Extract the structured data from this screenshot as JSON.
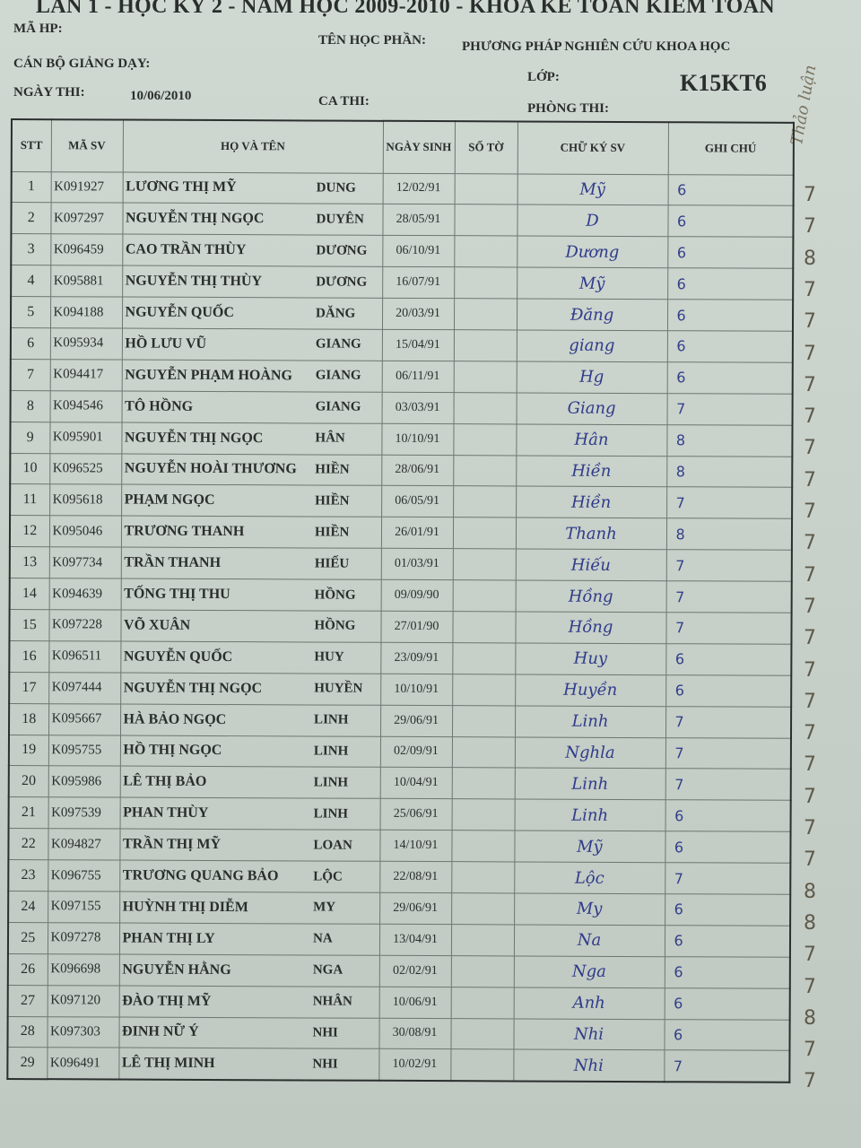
{
  "header": {
    "title": "LẦN 1 - HỌC KỲ 2 - NĂM HỌC 2009-2010 - KHOA KẾ TOÁN KIỂM TOÁN",
    "ma_hp_label": "MÃ HP:",
    "ten_hoc_phan_label": "TÊN HỌC PHẦN:",
    "ten_hoc_phan": "PHƯƠNG PHÁP NGHIÊN CỨU KHOA HỌC",
    "can_bo_label": "CÁN BỘ GIẢNG DẠY:",
    "lop_label": "LỚP:",
    "lop": "K15KT6",
    "ngay_thi_label": "NGÀY THI:",
    "ngay_thi": "10/06/2010",
    "ca_thi_label": "CA THI:",
    "phong_thi_label": "PHÒNG THI:",
    "margin_note": "Thảo luận"
  },
  "columns": [
    "STT",
    "MÃ SV",
    "HỌ VÀ TÊN",
    "NGÀY SINH",
    "SỐ TỜ",
    "CHỮ KÝ SV",
    "GHI CHÚ"
  ],
  "rows": [
    {
      "stt": "1",
      "ma": "K091927",
      "ho": "LƯƠNG THỊ MỸ",
      "ten": "DUNG",
      "ns": "12/02/91",
      "ky": "Mỹ",
      "gc": "6",
      "margin": "7"
    },
    {
      "stt": "2",
      "ma": "K097297",
      "ho": "NGUYỄN THỊ NGỌC",
      "ten": "DUYÊN",
      "ns": "28/05/91",
      "ky": "D",
      "gc": "6",
      "margin": "7"
    },
    {
      "stt": "3",
      "ma": "K096459",
      "ho": "CAO TRẦN THÙY",
      "ten": "DƯƠNG",
      "ns": "06/10/91",
      "ky": "Dương",
      "gc": "6",
      "margin": "8"
    },
    {
      "stt": "4",
      "ma": "K095881",
      "ho": "NGUYỄN THỊ THÙY",
      "ten": "DƯƠNG",
      "ns": "16/07/91",
      "ky": "Mỹ",
      "gc": "6",
      "margin": "7"
    },
    {
      "stt": "5",
      "ma": "K094188",
      "ho": "NGUYỄN QUỐC",
      "ten": "DĂNG",
      "ns": "20/03/91",
      "ky": "Đăng",
      "gc": "6",
      "margin": "7"
    },
    {
      "stt": "6",
      "ma": "K095934",
      "ho": "HỒ LƯU VŨ",
      "ten": "GIANG",
      "ns": "15/04/91",
      "ky": "giang",
      "gc": "6",
      "margin": "7"
    },
    {
      "stt": "7",
      "ma": "K094417",
      "ho": "NGUYỄN PHẠM HOÀNG",
      "ten": "GIANG",
      "ns": "06/11/91",
      "ky": "Hg",
      "gc": "6",
      "margin": "7"
    },
    {
      "stt": "8",
      "ma": "K094546",
      "ho": "TÔ HỒNG",
      "ten": "GIANG",
      "ns": "03/03/91",
      "ky": "Giang",
      "gc": "7",
      "margin": "7"
    },
    {
      "stt": "9",
      "ma": "K095901",
      "ho": "NGUYỄN THỊ NGỌC",
      "ten": "HÂN",
      "ns": "10/10/91",
      "ky": "Hân",
      "gc": "8",
      "margin": "7"
    },
    {
      "stt": "10",
      "ma": "K096525",
      "ho": "NGUYỄN HOÀI THƯƠNG",
      "ten": "HIỀN",
      "ns": "28/06/91",
      "ky": "Hiền",
      "gc": "8",
      "margin": "7"
    },
    {
      "stt": "11",
      "ma": "K095618",
      "ho": "PHẠM NGỌC",
      "ten": "HIỀN",
      "ns": "06/05/91",
      "ky": "Hiền",
      "gc": "7",
      "margin": "7"
    },
    {
      "stt": "12",
      "ma": "K095046",
      "ho": "TRƯƠNG THANH",
      "ten": "HIỀN",
      "ns": "26/01/91",
      "ky": "Thanh",
      "gc": "8",
      "margin": "7"
    },
    {
      "stt": "13",
      "ma": "K097734",
      "ho": "TRẦN THANH",
      "ten": "HIẾU",
      "ns": "01/03/91",
      "ky": "Hiếu",
      "gc": "7",
      "margin": "7"
    },
    {
      "stt": "14",
      "ma": "K094639",
      "ho": "TỐNG THỊ THU",
      "ten": "HỒNG",
      "ns": "09/09/90",
      "ky": "Hồng",
      "gc": "7",
      "margin": "7"
    },
    {
      "stt": "15",
      "ma": "K097228",
      "ho": "VÕ XUÂN",
      "ten": "HỒNG",
      "ns": "27/01/90",
      "ky": "Hồng",
      "gc": "7",
      "margin": "7"
    },
    {
      "stt": "16",
      "ma": "K096511",
      "ho": "NGUYỄN QUỐC",
      "ten": "HUY",
      "ns": "23/09/91",
      "ky": "Huy",
      "gc": "6",
      "margin": "7"
    },
    {
      "stt": "17",
      "ma": "K097444",
      "ho": "NGUYỄN THỊ NGỌC",
      "ten": "HUYỀN",
      "ns": "10/10/91",
      "ky": "Huyền",
      "gc": "6",
      "margin": "7"
    },
    {
      "stt": "18",
      "ma": "K095667",
      "ho": "HÀ BẢO NGỌC",
      "ten": "LINH",
      "ns": "29/06/91",
      "ky": "Linh",
      "gc": "7",
      "margin": "7"
    },
    {
      "stt": "19",
      "ma": "K095755",
      "ho": "HỒ THỊ NGỌC",
      "ten": "LINH",
      "ns": "02/09/91",
      "ky": "Nghla",
      "gc": "7",
      "margin": "7"
    },
    {
      "stt": "20",
      "ma": "K095986",
      "ho": "LÊ THỊ BẢO",
      "ten": "LINH",
      "ns": "10/04/91",
      "ky": "Linh",
      "gc": "7",
      "margin": "7"
    },
    {
      "stt": "21",
      "ma": "K097539",
      "ho": "PHAN THÙY",
      "ten": "LINH",
      "ns": "25/06/91",
      "ky": "Linh",
      "gc": "6",
      "margin": "7"
    },
    {
      "stt": "22",
      "ma": "K094827",
      "ho": "TRẦN THỊ MỸ",
      "ten": "LOAN",
      "ns": "14/10/91",
      "ky": "Mỹ",
      "gc": "6",
      "margin": "7"
    },
    {
      "stt": "23",
      "ma": "K096755",
      "ho": "TRƯƠNG QUANG BẢO",
      "ten": "LỘC",
      "ns": "22/08/91",
      "ky": "Lộc",
      "gc": "7",
      "margin": "8"
    },
    {
      "stt": "24",
      "ma": "K097155",
      "ho": "HUỲNH THỊ DIỄM",
      "ten": "MY",
      "ns": "29/06/91",
      "ky": "My",
      "gc": "6",
      "margin": "8"
    },
    {
      "stt": "25",
      "ma": "K097278",
      "ho": "PHAN THỊ LY",
      "ten": "NA",
      "ns": "13/04/91",
      "ky": "Na",
      "gc": "6",
      "margin": "7"
    },
    {
      "stt": "26",
      "ma": "K096698",
      "ho": "NGUYỄN HẰNG",
      "ten": "NGA",
      "ns": "02/02/91",
      "ky": "Nga",
      "gc": "6",
      "margin": "7"
    },
    {
      "stt": "27",
      "ma": "K097120",
      "ho": "ĐÀO THỊ MỸ",
      "ten": "NHÂN",
      "ns": "10/06/91",
      "ky": "Anh",
      "gc": "6",
      "margin": "8"
    },
    {
      "stt": "28",
      "ma": "K097303",
      "ho": "ĐINH NỮ Ý",
      "ten": "NHI",
      "ns": "30/08/91",
      "ky": "Nhi",
      "gc": "6",
      "margin": "7"
    },
    {
      "stt": "29",
      "ma": "K096491",
      "ho": "LÊ THỊ MINH",
      "ten": "NHI",
      "ns": "10/02/91",
      "ky": "Nhi",
      "gc": "7",
      "margin": "7"
    }
  ]
}
